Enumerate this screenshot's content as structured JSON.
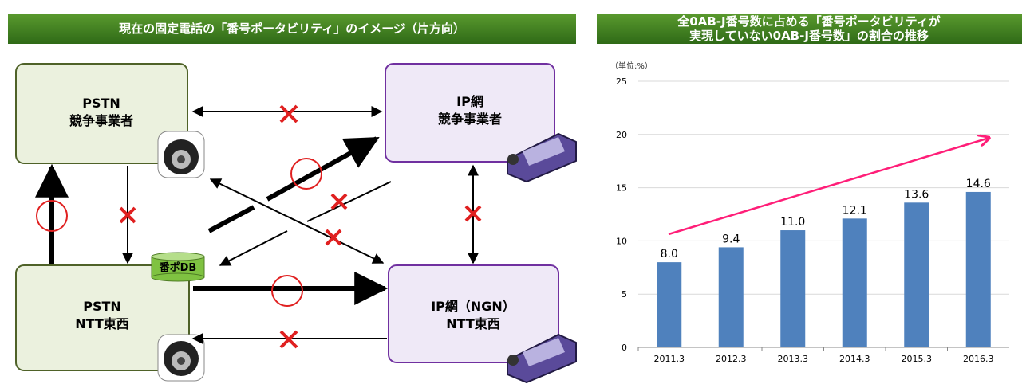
{
  "diagram": {
    "header": {
      "title": "現在の固定電話の「番号ポータビリティ」のイメージ（片方向）"
    },
    "nodes": [
      {
        "lines": [
          "PSTN",
          "競争事業者"
        ]
      },
      {
        "lines": [
          "IP網",
          "競争事業者"
        ]
      },
      {
        "lines": [
          "PSTN",
          "NTT東西"
        ]
      },
      {
        "lines": [
          "IP網（NGN）",
          "NTT東西"
        ]
      }
    ],
    "database": {
      "label": "番ポDB"
    }
  },
  "chart_data": {
    "type": "bar",
    "title": [
      "全0AB-J番号数に占める「番号ポータビリティが",
      "実現していない0AB-J番号数」の割合の推移"
    ],
    "y_unit_label": "（単位:%）",
    "categories": [
      "2011.3",
      "2012.3",
      "2013.3",
      "2014.3",
      "2015.3",
      "2016.3"
    ],
    "values": [
      8.0,
      9.4,
      11.0,
      12.1,
      13.6,
      14.6
    ],
    "value_labels": [
      "8.0",
      "9.4",
      "11.0",
      "12.1",
      "13.6",
      "14.6"
    ],
    "color": "#4f81bd",
    "ylim": [
      0,
      25
    ],
    "yticks": [
      0,
      5,
      10,
      15,
      20,
      25
    ],
    "grid": true
  }
}
